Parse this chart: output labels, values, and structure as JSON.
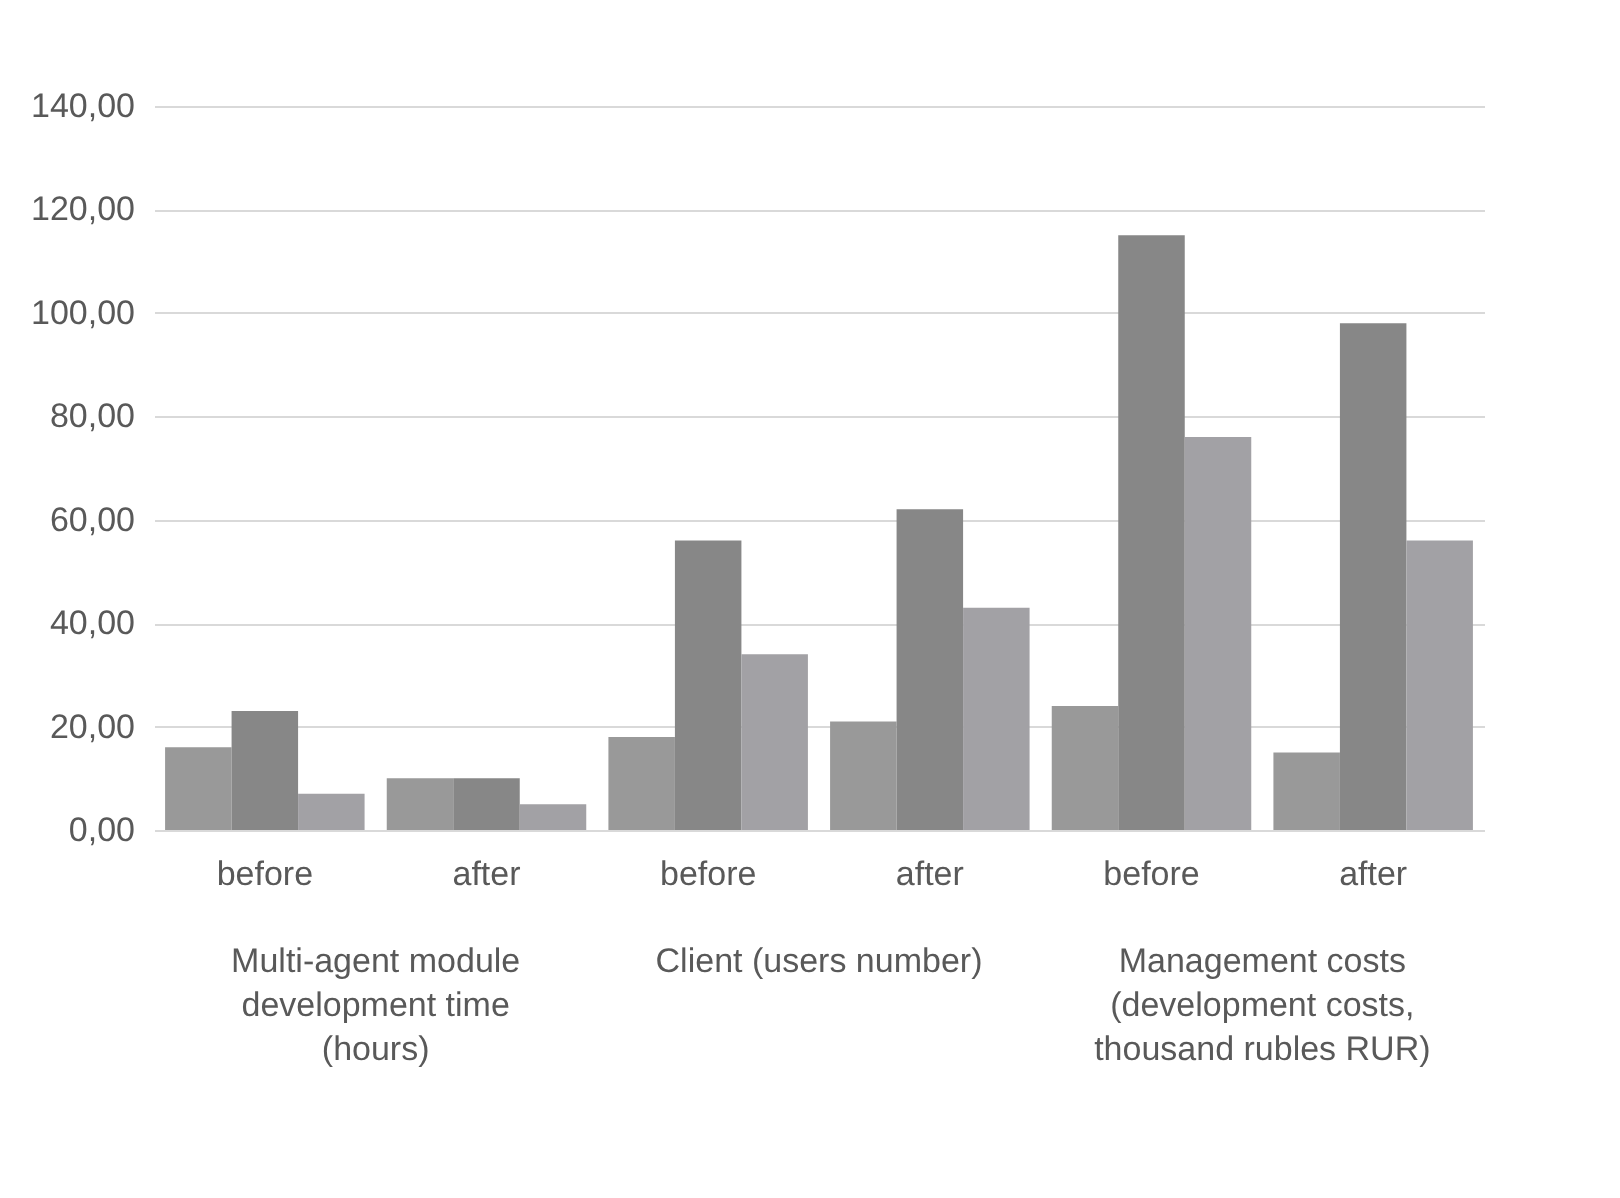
{
  "chart_data": {
    "type": "bar",
    "categories": [
      "before",
      "after",
      "before",
      "after",
      "before",
      "after"
    ],
    "series": [
      {
        "color": "#999999",
        "values": [
          16,
          10,
          18,
          21,
          24,
          15
        ]
      },
      {
        "color": "#878787",
        "values": [
          23,
          10,
          56,
          62,
          115,
          98
        ]
      },
      {
        "color": "#a2a1a5",
        "values": [
          7,
          5,
          34,
          43,
          76,
          56
        ]
      }
    ],
    "ylim": [
      0,
      140
    ],
    "yticks": [
      {
        "value": 0,
        "label": "0,00"
      },
      {
        "value": 20,
        "label": "20,00"
      },
      {
        "value": 40,
        "label": "40,00"
      },
      {
        "value": 60,
        "label": "60,00"
      },
      {
        "value": 80,
        "label": "80,00"
      },
      {
        "value": 100,
        "label": "100,00"
      },
      {
        "value": 120,
        "label": "120,00"
      },
      {
        "value": 140,
        "label": "140,00"
      }
    ],
    "grid": "y",
    "annotations": [
      "Multi-agent module development time (hours)",
      "Client  (users number)",
      "Management costs (development costs, thousand rubles RUR)"
    ]
  }
}
